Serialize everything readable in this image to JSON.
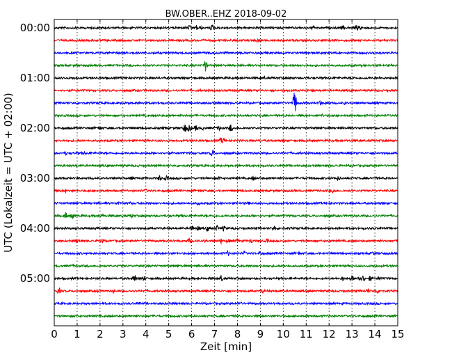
{
  "chart_data": {
    "type": "line",
    "title": "BW.OBER..EHZ 2018-09-02",
    "xlabel": "Zeit  [min]",
    "ylabel": "UTC (Lokalzeit = UTC + 02:00)",
    "xlim": [
      0,
      15
    ],
    "x_ticks": [
      "0",
      "1",
      "2",
      "3",
      "4",
      "5",
      "6",
      "7",
      "8",
      "9",
      "10",
      "11",
      "12",
      "13",
      "14",
      "15"
    ],
    "y_tick_labels": [
      "00:00",
      "01:00",
      "02:00",
      "03:00",
      "04:00",
      "05:00"
    ],
    "trace_minutes": 15,
    "trace_count": 24,
    "colors": [
      "#000000",
      "#ff0000",
      "#0000ff",
      "#007f00"
    ],
    "grid": "vertical dotted at each minute",
    "events": [
      {
        "trace": 0,
        "minutes": [
          5.9,
          6.2,
          6.4,
          6.9,
          11.3,
          12.6,
          13.2,
          13.4
        ],
        "amps": [
          0.45,
          0.5,
          0.35,
          0.6,
          0.4,
          0.45,
          0.55,
          0.5
        ]
      },
      {
        "trace": 1,
        "minutes": [
          8.9
        ],
        "amps": [
          0.45
        ]
      },
      {
        "trace": 2,
        "minutes": [],
        "amps": []
      },
      {
        "trace": 3,
        "minutes": [
          6.6
        ],
        "amps": [
          1.0
        ]
      },
      {
        "trace": 4,
        "minutes": [
          9.2,
          10.3
        ],
        "amps": [
          0.3,
          0.3
        ]
      },
      {
        "trace": 5,
        "minutes": [
          11.3
        ],
        "amps": [
          0.3
        ]
      },
      {
        "trace": 6,
        "minutes": [
          10.5,
          11.6,
          11.9,
          12.7
        ],
        "amps": [
          2.0,
          0.5,
          0.4,
          0.3
        ]
      },
      {
        "trace": 7,
        "minutes": [
          11.7
        ],
        "amps": [
          0.35
        ]
      },
      {
        "trace": 8,
        "minutes": [
          2.0,
          4.8,
          5.7,
          5.9,
          6.2,
          6.5,
          7.2,
          7.7
        ],
        "amps": [
          0.35,
          0.4,
          0.8,
          0.6,
          0.55,
          0.35,
          0.45,
          0.7
        ]
      },
      {
        "trace": 9,
        "minutes": [
          7.3,
          7.4
        ],
        "amps": [
          0.6,
          0.5
        ]
      },
      {
        "trace": 10,
        "minutes": [
          0.5,
          1.3,
          6.9
        ],
        "amps": [
          0.4,
          0.35,
          0.65
        ]
      },
      {
        "trace": 11,
        "minutes": [],
        "amps": []
      },
      {
        "trace": 12,
        "minutes": [
          3.4,
          4.6,
          4.9,
          7.2,
          8.7,
          12.4
        ],
        "amps": [
          0.35,
          0.55,
          0.45,
          0.4,
          0.4,
          0.45
        ]
      },
      {
        "trace": 13,
        "minutes": [
          0.5,
          4.0,
          6.1,
          12.2
        ],
        "amps": [
          0.4,
          0.35,
          0.3,
          0.45
        ]
      },
      {
        "trace": 14,
        "minutes": [
          2.8,
          3.3,
          6.3,
          8.5
        ],
        "amps": [
          0.4,
          0.3,
          0.35,
          0.3
        ]
      },
      {
        "trace": 15,
        "minutes": [
          0.5,
          0.8,
          2.1,
          3.4,
          5.6
        ],
        "amps": [
          0.6,
          0.5,
          0.45,
          0.4,
          0.4
        ]
      },
      {
        "trace": 16,
        "minutes": [
          6.0,
          6.3,
          6.7,
          7.1,
          7.4,
          9.6
        ],
        "amps": [
          0.55,
          0.5,
          0.6,
          0.55,
          0.5,
          0.5
        ]
      },
      {
        "trace": 17,
        "minutes": [
          1.0,
          2.1,
          5.9,
          6.6,
          7.3,
          7.6,
          8.0,
          8.6,
          9.3
        ],
        "amps": [
          0.4,
          0.45,
          0.55,
          0.4,
          0.5,
          0.45,
          0.4,
          0.5,
          0.4
        ]
      },
      {
        "trace": 18,
        "minutes": [
          7.6,
          8.3,
          9.0,
          10.7,
          13.9
        ],
        "amps": [
          0.45,
          0.4,
          0.4,
          0.35,
          0.35
        ]
      },
      {
        "trace": 19,
        "minutes": [
          0.8,
          3.7,
          5.4
        ],
        "amps": [
          0.3,
          0.3,
          0.3
        ]
      },
      {
        "trace": 20,
        "minutes": [
          3.5,
          3.9,
          7.3,
          12.6,
          13.0,
          13.3,
          13.5,
          13.8,
          14.2
        ],
        "amps": [
          0.7,
          0.45,
          0.6,
          0.5,
          0.55,
          0.7,
          0.6,
          0.55,
          0.45
        ]
      },
      {
        "trace": 21,
        "minutes": [
          0.2,
          1.9,
          2.6,
          9.1,
          13.7,
          14.1
        ],
        "amps": [
          0.55,
          0.4,
          0.35,
          0.4,
          0.45,
          0.4
        ]
      },
      {
        "trace": 22,
        "minutes": [
          3.7,
          8.1
        ],
        "amps": [
          0.35,
          0.45
        ]
      },
      {
        "trace": 23,
        "minutes": [],
        "amps": []
      }
    ]
  }
}
